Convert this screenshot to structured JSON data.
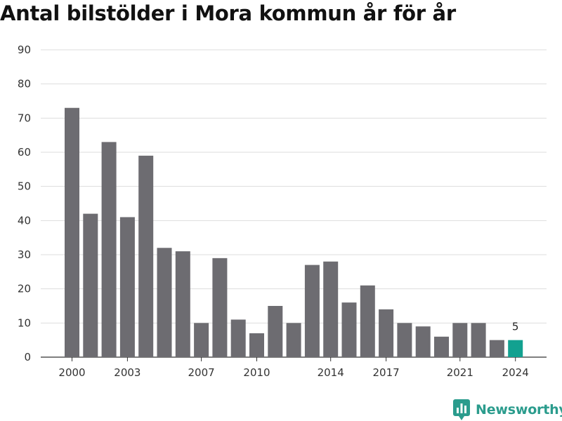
{
  "colors": {
    "bar": "#6d6c71",
    "highlight": "#12a190",
    "grid": "#dddddd",
    "brand": "#2b9c8d"
  },
  "logo": {
    "text": "Newsworthy",
    "icon": "bar-chart-speech-bubble-icon"
  },
  "chart_data": {
    "type": "bar",
    "title": "Antal bilstölder i Mora kommun år för år",
    "xlabel": "",
    "ylabel": "",
    "ylim": [
      0,
      90
    ],
    "yticks": [
      0,
      10,
      20,
      30,
      40,
      50,
      60,
      70,
      80,
      90
    ],
    "grid": true,
    "categories": [
      "2000",
      "2001",
      "2002",
      "2003",
      "2004",
      "2005",
      "2006",
      "2007",
      "2008",
      "2009",
      "2010",
      "2011",
      "2012",
      "2013",
      "2014",
      "2015",
      "2016",
      "2017",
      "2018",
      "2019",
      "2020",
      "2021",
      "2022",
      "2023",
      "2024"
    ],
    "values": [
      73,
      42,
      63,
      41,
      59,
      32,
      31,
      10,
      29,
      11,
      7,
      15,
      10,
      27,
      28,
      16,
      21,
      14,
      10,
      9,
      6,
      10,
      10,
      5,
      5
    ],
    "xtick_labels": [
      "2000",
      "2003",
      "2007",
      "2010",
      "2014",
      "2017",
      "2021",
      "2024"
    ],
    "highlight_category": "2024",
    "data_labels": [
      {
        "category": "2024",
        "text": "5"
      }
    ]
  }
}
